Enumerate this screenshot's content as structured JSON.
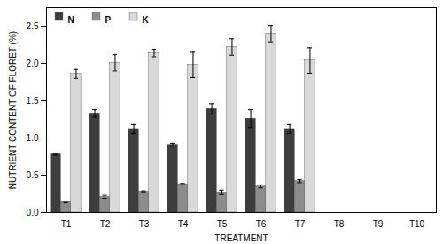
{
  "chart_data": {
    "type": "bar",
    "categories": [
      "T1",
      "T2",
      "T3",
      "T4",
      "T5",
      "T6",
      "T7",
      "T8",
      "T9",
      "T10"
    ],
    "series": [
      {
        "name": "N",
        "color": "#3d3d3d",
        "values": [
          0.78,
          1.33,
          1.12,
          0.91,
          1.39,
          1.26,
          1.12,
          null,
          null,
          null
        ],
        "errors": [
          0.01,
          0.05,
          0.06,
          0.02,
          0.07,
          0.12,
          0.06,
          null,
          null,
          null
        ]
      },
      {
        "name": "P",
        "color": "#8c8c8c",
        "values": [
          0.14,
          0.21,
          0.28,
          0.38,
          0.27,
          0.35,
          0.42,
          null,
          null,
          null
        ],
        "errors": [
          0.01,
          0.02,
          0.01,
          0.01,
          0.03,
          0.02,
          0.02,
          null,
          null,
          null
        ]
      },
      {
        "name": "K",
        "color": "#d9d9d9",
        "values": [
          1.86,
          2.01,
          2.14,
          1.98,
          2.22,
          2.4,
          2.04,
          null,
          null,
          null
        ],
        "errors": [
          0.06,
          0.11,
          0.05,
          0.17,
          0.11,
          0.11,
          0.17,
          null,
          null,
          null
        ]
      }
    ],
    "xlabel": "TREATMENT",
    "ylabel": "NUTRIENT CONTENT OF FLORET (%)",
    "ylim": [
      0,
      2.75
    ],
    "yticks": [
      {
        "value": 0,
        "label": "0.0"
      },
      {
        "value": 0.5,
        "label": "0.5"
      },
      {
        "value": 1,
        "label": "1.0"
      },
      {
        "value": 1.5,
        "label": "1.5"
      },
      {
        "value": 2,
        "label": "2.0"
      },
      {
        "value": 2.5,
        "label": "2.5"
      }
    ],
    "legend": "top-left"
  }
}
